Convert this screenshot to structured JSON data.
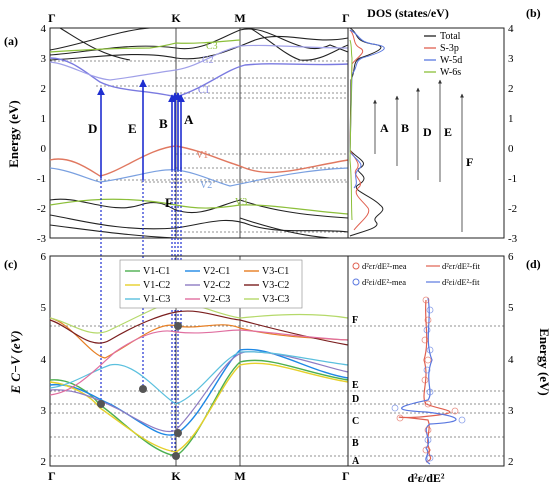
{
  "panels": {
    "a": "(a)",
    "b": "(b)",
    "c": "(c)",
    "d": "(d)"
  },
  "kpoints": [
    "Γ",
    "K",
    "M",
    "Γ"
  ],
  "band_panel": {
    "ylabel": "Energy (eV)",
    "ylim": [
      -3,
      4
    ],
    "yticks": [
      "-3",
      "-2",
      "-1",
      "0",
      "1",
      "2",
      "3",
      "4"
    ],
    "curve_labels": [
      "C1",
      "C2",
      "C3",
      "V1",
      "V2",
      "V3"
    ],
    "transition_letters": [
      "D",
      "E",
      "B",
      "A",
      "F"
    ],
    "colors": {
      "C1": "#7a7ae0",
      "C2": "#9a9ae8",
      "C3": "#8cbf3a",
      "V1": "#e07860",
      "V2": "#7aa0e0",
      "V3": "#8cbf3a",
      "arrow": "#1f2fd0"
    }
  },
  "dos_panel": {
    "title": "DOS (states/eV)",
    "legend": [
      {
        "label": "Total",
        "color": "#222222"
      },
      {
        "label": "S-3p",
        "color": "#e06050"
      },
      {
        "label": "W-5d",
        "color": "#5a78e0"
      },
      {
        "label": "W-6s",
        "color": "#8cbf3a"
      }
    ],
    "yticks_right": [
      "-3",
      "-2",
      "-1",
      "0",
      "1",
      "2",
      "3",
      "4"
    ],
    "transition_letters": [
      "A",
      "B",
      "D",
      "E",
      "F"
    ]
  },
  "ecv_panel": {
    "ylabel": "E C−V (eV)",
    "ylim": [
      2,
      6
    ],
    "yticks": [
      "2",
      "3",
      "4",
      "5",
      "6"
    ],
    "legend": [
      {
        "label": "V1-C1",
        "color": "#4caf50"
      },
      {
        "label": "V2-C1",
        "color": "#1e88e5"
      },
      {
        "label": "V3-C1",
        "color": "#e67e22"
      },
      {
        "label": "V1-C2",
        "color": "#e6d02a"
      },
      {
        "label": "V2-C2",
        "color": "#8e7cc3"
      },
      {
        "label": "V3-C2",
        "color": "#7b1f1f"
      },
      {
        "label": "V1-C3",
        "color": "#5bc0de"
      },
      {
        "label": "V2-C3",
        "color": "#e06fa0"
      },
      {
        "label": "V3-C3",
        "color": "#b5d96a"
      }
    ]
  },
  "deriv_panel": {
    "legend": [
      {
        "label": "d²εr/dE²-mea",
        "color": "#e06050"
      },
      {
        "label": "d²εr/dE²-fit",
        "color": "#e06050"
      },
      {
        "label": "d²εi/dE²-mea",
        "color": "#5a78e0"
      },
      {
        "label": "d²εi/dE²-fit",
        "color": "#5a78e0"
      }
    ],
    "ylabel_right": "Energy (eV)",
    "yticks_right": [
      "2",
      "3",
      "4",
      "5",
      "6"
    ],
    "xlabel": "d²ε/dE²",
    "critical_points": [
      "A",
      "B",
      "C",
      "D",
      "E",
      "F"
    ]
  }
}
